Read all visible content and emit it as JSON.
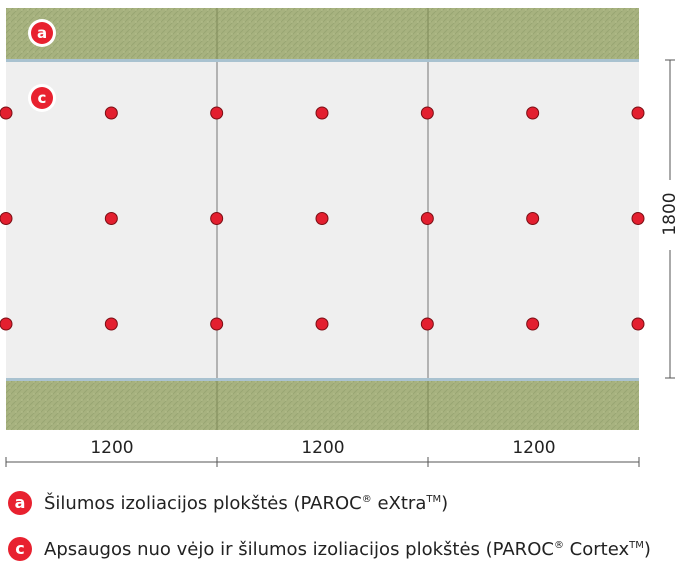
{
  "diagram": {
    "labels": {
      "a": "a",
      "c": "c"
    },
    "dimensions": {
      "width_segments": [
        "1200",
        "1200",
        "1200"
      ],
      "height": "1800"
    },
    "colors": {
      "insulation": "#a6b27e",
      "windboard": "#efefef",
      "fastener": "#e31f2f",
      "badge": "#e8212f"
    },
    "fastener_grid": {
      "columns": 7,
      "rows": 3
    }
  },
  "legend": [
    {
      "badge": "a",
      "text": "Šilumos izoliacijos plokštės (PAROC",
      "mark1": "®",
      "text2": " eXtra",
      "mark2": "TM",
      "text3": ")"
    },
    {
      "badge": "c",
      "text": "Apsaugos nuo vėjo ir šilumos izoliacijos plokštės (PAROC",
      "mark1": "®",
      "text2": " Cortex",
      "mark2": "TM",
      "text3": ")"
    }
  ]
}
